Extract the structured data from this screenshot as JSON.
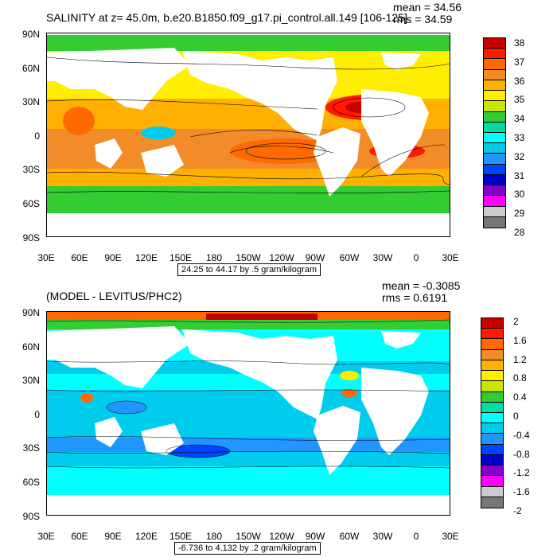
{
  "panel1": {
    "title": "SALINITY at z=  45.0m, b.e20.B1850.f09_g17.pi_control.all.149 [106-125]",
    "mean": "mean = 34.56",
    "rms": "rms = 34.59",
    "range": "24.25 to 44.17 by .5 gram/kilogram",
    "colorbar_labels": [
      "38",
      "37",
      "36",
      "35",
      "34",
      "33",
      "32",
      "31",
      "30",
      "29",
      "28"
    ],
    "colorbar_colors": [
      "#c80000",
      "#ff1a00",
      "#ff6a00",
      "#f28c28",
      "#ffb000",
      "#ffee00",
      "#c8e600",
      "#33cc33",
      "#00dda0",
      "#00ffff",
      "#00ccee",
      "#2296ff",
      "#0044ff",
      "#0000cc",
      "#8800cc",
      "#ff00ff",
      "#cccccc",
      "#777777"
    ]
  },
  "panel2": {
    "title": "(MODEL - LEVITUS/PHC2)",
    "mean": "mean = -0.3085",
    "rms": "rms = 0.6191",
    "range": "-6.736 to 4.132 by .2 gram/kilogram",
    "colorbar_labels": [
      "2",
      "1.6",
      "1.2",
      "0.8",
      "0.4",
      "0",
      "-0.4",
      "-0.8",
      "-1.2",
      "-1.6",
      "-2"
    ],
    "colorbar_colors": [
      "#c80000",
      "#ff1a00",
      "#ff6a00",
      "#f28c28",
      "#ffb000",
      "#ffee00",
      "#c8e600",
      "#33cc33",
      "#00dda0",
      "#00ffff",
      "#00ccee",
      "#2296ff",
      "#0044ff",
      "#0000cc",
      "#8800cc",
      "#ff00ff",
      "#cccccc",
      "#777777"
    ]
  },
  "axes": {
    "lat_labels": [
      "90N",
      "60N",
      "30N",
      "0",
      "30S",
      "60S",
      "90S"
    ],
    "lon_labels": [
      "30E",
      "60E",
      "90E",
      "120E",
      "150E",
      "180",
      "150W",
      "120W",
      "90W",
      "60W",
      "30W",
      "0",
      "30E"
    ]
  }
}
